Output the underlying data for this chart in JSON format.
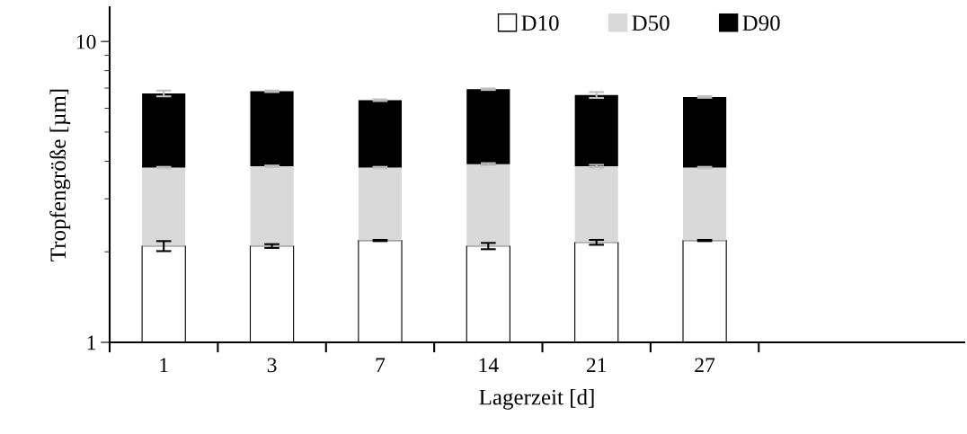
{
  "chart_data": {
    "type": "bar",
    "stacked": true,
    "log": "y",
    "xlabel": "Lagerzeit [d]",
    "ylabel": "Tropfengröße [µm]",
    "categories": [
      "1",
      "3",
      "7",
      "14",
      "21",
      "27"
    ],
    "series": [
      {
        "name": "D10",
        "color": "#ffffff",
        "values": [
          2.09,
          2.09,
          2.18,
          2.09,
          2.15,
          2.18
        ],
        "errors": [
          0.08,
          0.03,
          0.01,
          0.05,
          0.04,
          0.01
        ]
      },
      {
        "name": "D50",
        "color": "#d9d9d9",
        "values": [
          1.72,
          1.76,
          1.63,
          1.82,
          1.7,
          1.63
        ],
        "errors": [
          0.02,
          0.02,
          0.02,
          0.03,
          0.04,
          0.02
        ]
      },
      {
        "name": "D90",
        "color": "#000000",
        "values": [
          2.91,
          2.98,
          2.57,
          3.03,
          2.79,
          2.73
        ],
        "errors": [
          0.15,
          0.04,
          0.04,
          0.04,
          0.15,
          0.04
        ]
      }
    ],
    "ylim": [
      1,
      13
    ],
    "yticks": [
      1,
      10
    ],
    "grid": false,
    "legend": "top"
  }
}
